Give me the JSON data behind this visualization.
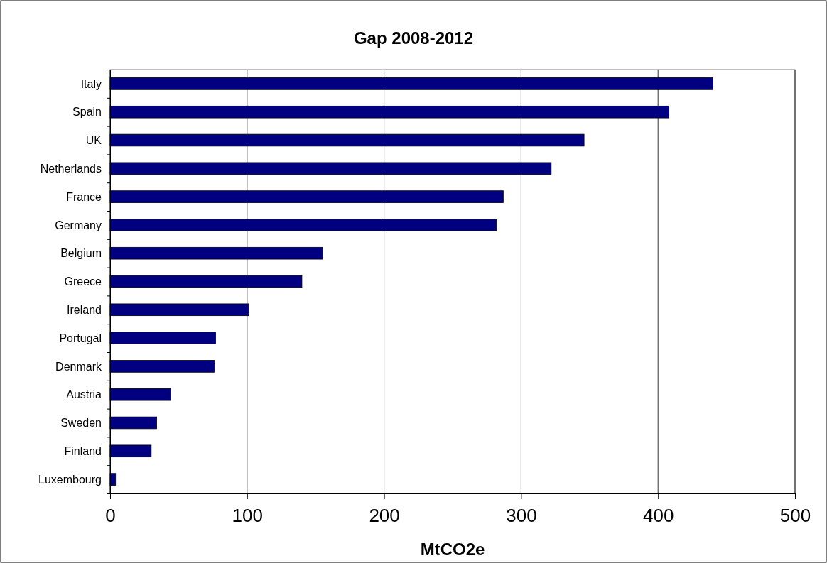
{
  "chart_data": {
    "type": "bar",
    "orientation": "horizontal",
    "title": "Gap 2008-2012",
    "xlabel": "MtCO2e",
    "categories": [
      "Italy",
      "Spain",
      "UK",
      "Netherlands",
      "France",
      "Germany",
      "Belgium",
      "Greece",
      "Ireland",
      "Portugal",
      "Denmark",
      "Austria",
      "Sweden",
      "Finland",
      "Luxembourg"
    ],
    "values": [
      440,
      408,
      346,
      322,
      287,
      282,
      155,
      140,
      101,
      77,
      76,
      44,
      34,
      30,
      4
    ],
    "color": "#000080",
    "xlim": [
      0,
      500
    ],
    "xticks": [
      0,
      100,
      200,
      300,
      400,
      500
    ],
    "grid": "x"
  }
}
